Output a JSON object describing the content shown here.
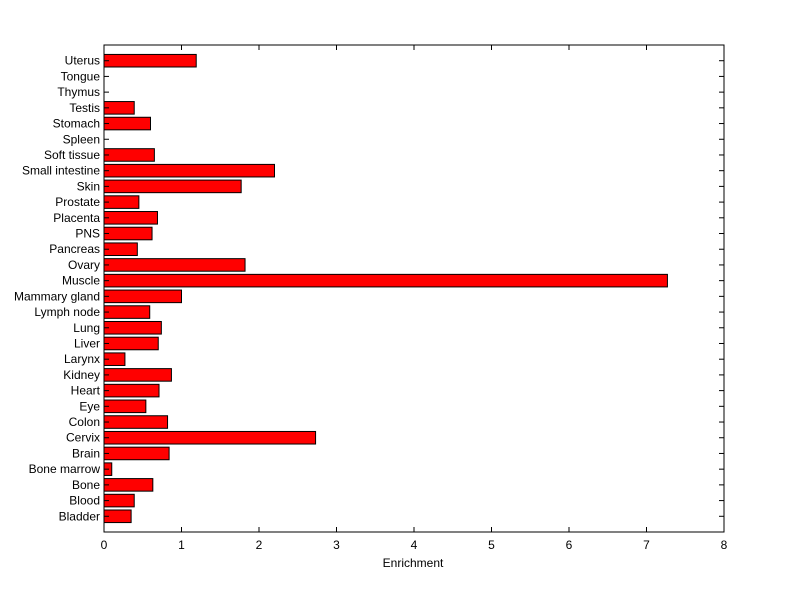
{
  "chart_data": {
    "type": "bar",
    "orientation": "horizontal",
    "categories": [
      "Bladder",
      "Blood",
      "Bone",
      "Bone marrow",
      "Brain",
      "Cervix",
      "Colon",
      "Eye",
      "Heart",
      "Kidney",
      "Larynx",
      "Liver",
      "Lung",
      "Lymph node",
      "Mammary gland",
      "Muscle",
      "Ovary",
      "Pancreas",
      "PNS",
      "Placenta",
      "Prostate",
      "Skin",
      "Small intestine",
      "Soft tissue",
      "Spleen",
      "Stomach",
      "Testis",
      "Thymus",
      "Tongue",
      "Uterus"
    ],
    "values": [
      0.35,
      0.39,
      0.63,
      0.1,
      0.84,
      2.73,
      0.82,
      0.54,
      0.71,
      0.87,
      0.27,
      0.7,
      0.74,
      0.59,
      1.0,
      7.27,
      1.82,
      0.43,
      0.62,
      0.69,
      0.45,
      1.77,
      2.2,
      0.65,
      0.0,
      0.6,
      0.39,
      0.0,
      0.0,
      1.19
    ],
    "xlabel": "Enrichment",
    "ylabel": "",
    "title": "",
    "xlim": [
      0,
      8
    ],
    "xticks": [
      "0",
      "1",
      "2",
      "3",
      "4",
      "5",
      "6",
      "7",
      "8"
    ],
    "grid": false,
    "legend": "none",
    "bar_color": "#ff0000",
    "bar_edge_color": "#000000"
  }
}
